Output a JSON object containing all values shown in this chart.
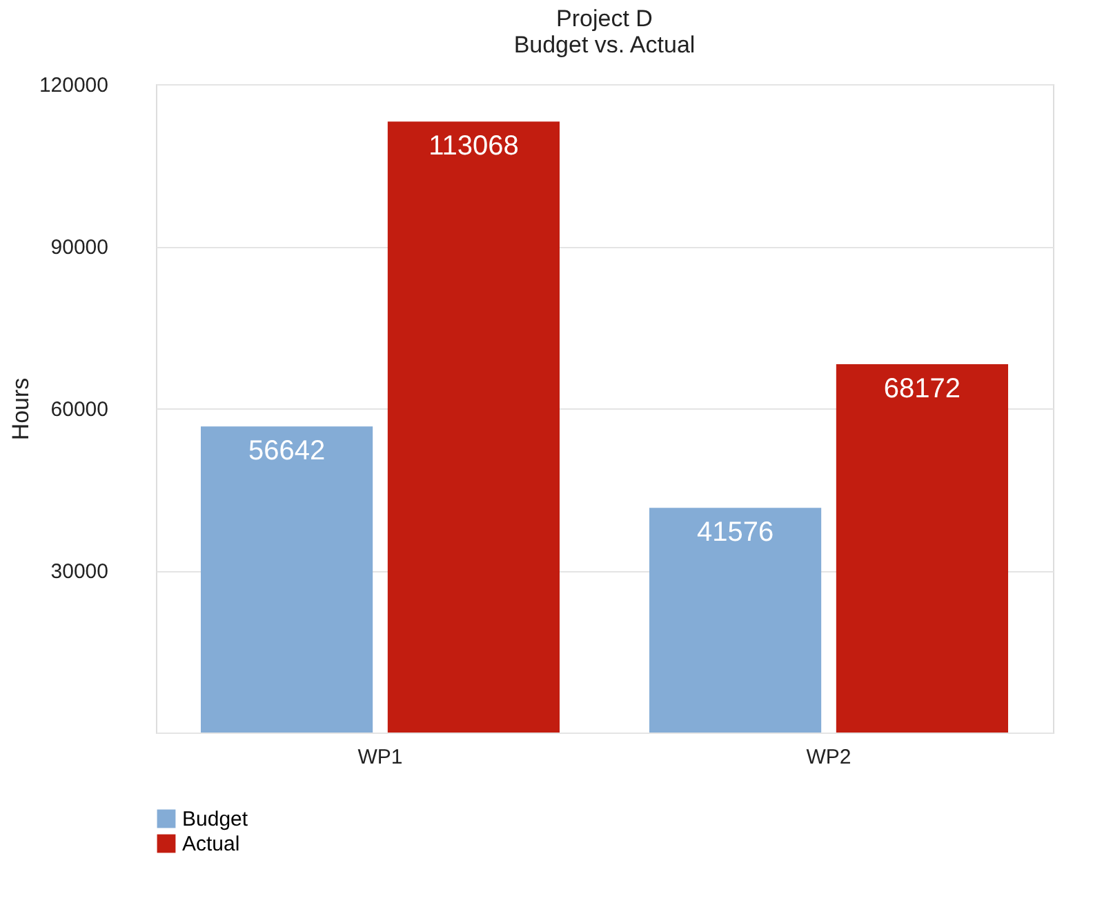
{
  "chart_data": {
    "type": "bar",
    "title": [
      "Project D",
      "Budget vs. Actual"
    ],
    "ylabel": "Hours",
    "categories": [
      "WP1",
      "WP2"
    ],
    "series": [
      {
        "name": "Budget",
        "color": "#84acd6",
        "values": [
          56642,
          41576
        ]
      },
      {
        "name": "Actual",
        "color": "#c21d10",
        "values": [
          113068,
          68172
        ]
      }
    ],
    "ylim": [
      0,
      120000
    ],
    "yticks": [
      {
        "value": 0,
        "label": null
      },
      30000,
      60000,
      90000,
      120000
    ],
    "grid": "y",
    "legend": "bottom left",
    "data_labels": true
  }
}
